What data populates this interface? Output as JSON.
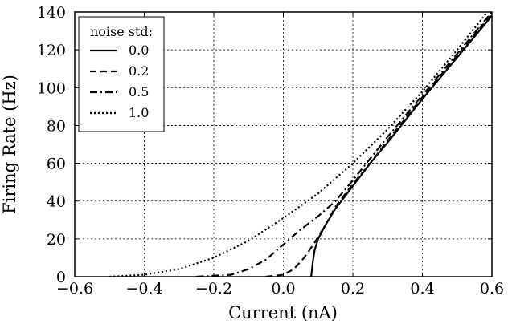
{
  "chart_data": {
    "type": "line",
    "title": "",
    "xlabel": "Current (nA)",
    "ylabel": "Firing Rate (Hz)",
    "xlim": [
      -0.6,
      0.6
    ],
    "ylim": [
      0,
      140
    ],
    "xticks": [
      -0.6,
      -0.4,
      -0.2,
      0.0,
      0.2,
      0.4,
      0.6
    ],
    "xtick_labels": [
      "−0.6",
      "−0.4",
      "−0.2",
      "0.0",
      "0.2",
      "0.4",
      "0.6"
    ],
    "yticks": [
      0,
      20,
      40,
      60,
      80,
      100,
      120,
      140
    ],
    "ytick_labels": [
      "0",
      "20",
      "40",
      "60",
      "80",
      "100",
      "120",
      "140"
    ],
    "grid": true,
    "legend": {
      "title": "noise std:",
      "placement": "top-left"
    },
    "series": [
      {
        "name": "0.0",
        "style": "solid",
        "color": "#000000",
        "x": [
          0.08,
          0.085,
          0.09,
          0.1,
          0.12,
          0.15,
          0.2,
          0.25,
          0.3,
          0.4,
          0.5,
          0.6
        ],
        "y": [
          0,
          8,
          14,
          20,
          27,
          36,
          48,
          60,
          71,
          94,
          116,
          138
        ]
      },
      {
        "name": "0.2",
        "style": "dashed",
        "color": "#000000",
        "x": [
          -0.05,
          0.0,
          0.03,
          0.06,
          0.09,
          0.12,
          0.15,
          0.2,
          0.25,
          0.3,
          0.4,
          0.5,
          0.6
        ],
        "y": [
          0,
          1,
          4,
          10,
          18,
          27,
          37,
          49,
          60,
          72,
          95,
          117,
          139
        ]
      },
      {
        "name": "0.5",
        "style": "dashdot",
        "color": "#000000",
        "x": [
          -0.25,
          -0.15,
          -0.1,
          -0.05,
          0.0,
          0.05,
          0.1,
          0.15,
          0.2,
          0.3,
          0.4,
          0.5,
          0.6
        ],
        "y": [
          0,
          1,
          4,
          9,
          17,
          25,
          32,
          40,
          51,
          74,
          96,
          118,
          140
        ]
      },
      {
        "name": "1.0",
        "style": "dotted",
        "color": "#000000",
        "x": [
          -0.5,
          -0.4,
          -0.3,
          -0.2,
          -0.1,
          0.0,
          0.1,
          0.2,
          0.3,
          0.4,
          0.5,
          0.6
        ],
        "y": [
          0,
          1,
          4,
          10,
          19,
          31,
          44,
          60,
          78,
          98,
          120,
          143
        ]
      }
    ]
  }
}
